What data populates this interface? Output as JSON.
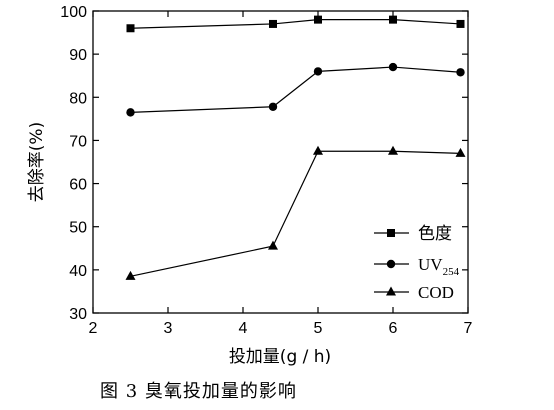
{
  "chart_data": {
    "type": "line",
    "xlabel": "投加量(g / h)",
    "ylabel": "去除率(%)",
    "xlim": [
      2,
      7
    ],
    "ylim": [
      30,
      100
    ],
    "xticks": [
      2,
      3,
      4,
      5,
      6,
      7
    ],
    "yticks": [
      30,
      40,
      50,
      60,
      70,
      80,
      90,
      100
    ],
    "grid": false,
    "legend_position": "lower-right",
    "series": [
      {
        "name": "色度",
        "marker": "square",
        "x": [
          2.5,
          4.4,
          5.0,
          6.0,
          6.9
        ],
        "y": [
          96.0,
          97.0,
          98.0,
          98.0,
          97.0
        ]
      },
      {
        "name": "UV",
        "name_subscript": "254",
        "marker": "circle",
        "x": [
          2.5,
          4.4,
          5.0,
          6.0,
          6.9
        ],
        "y": [
          76.5,
          77.8,
          86.0,
          87.0,
          85.8
        ]
      },
      {
        "name": "COD",
        "marker": "triangle",
        "x": [
          2.5,
          4.4,
          5.0,
          6.0,
          6.9
        ],
        "y": [
          38.5,
          45.5,
          67.5,
          67.5,
          67.0
        ]
      }
    ]
  },
  "caption": "图 3   臭氧投加量的影响"
}
